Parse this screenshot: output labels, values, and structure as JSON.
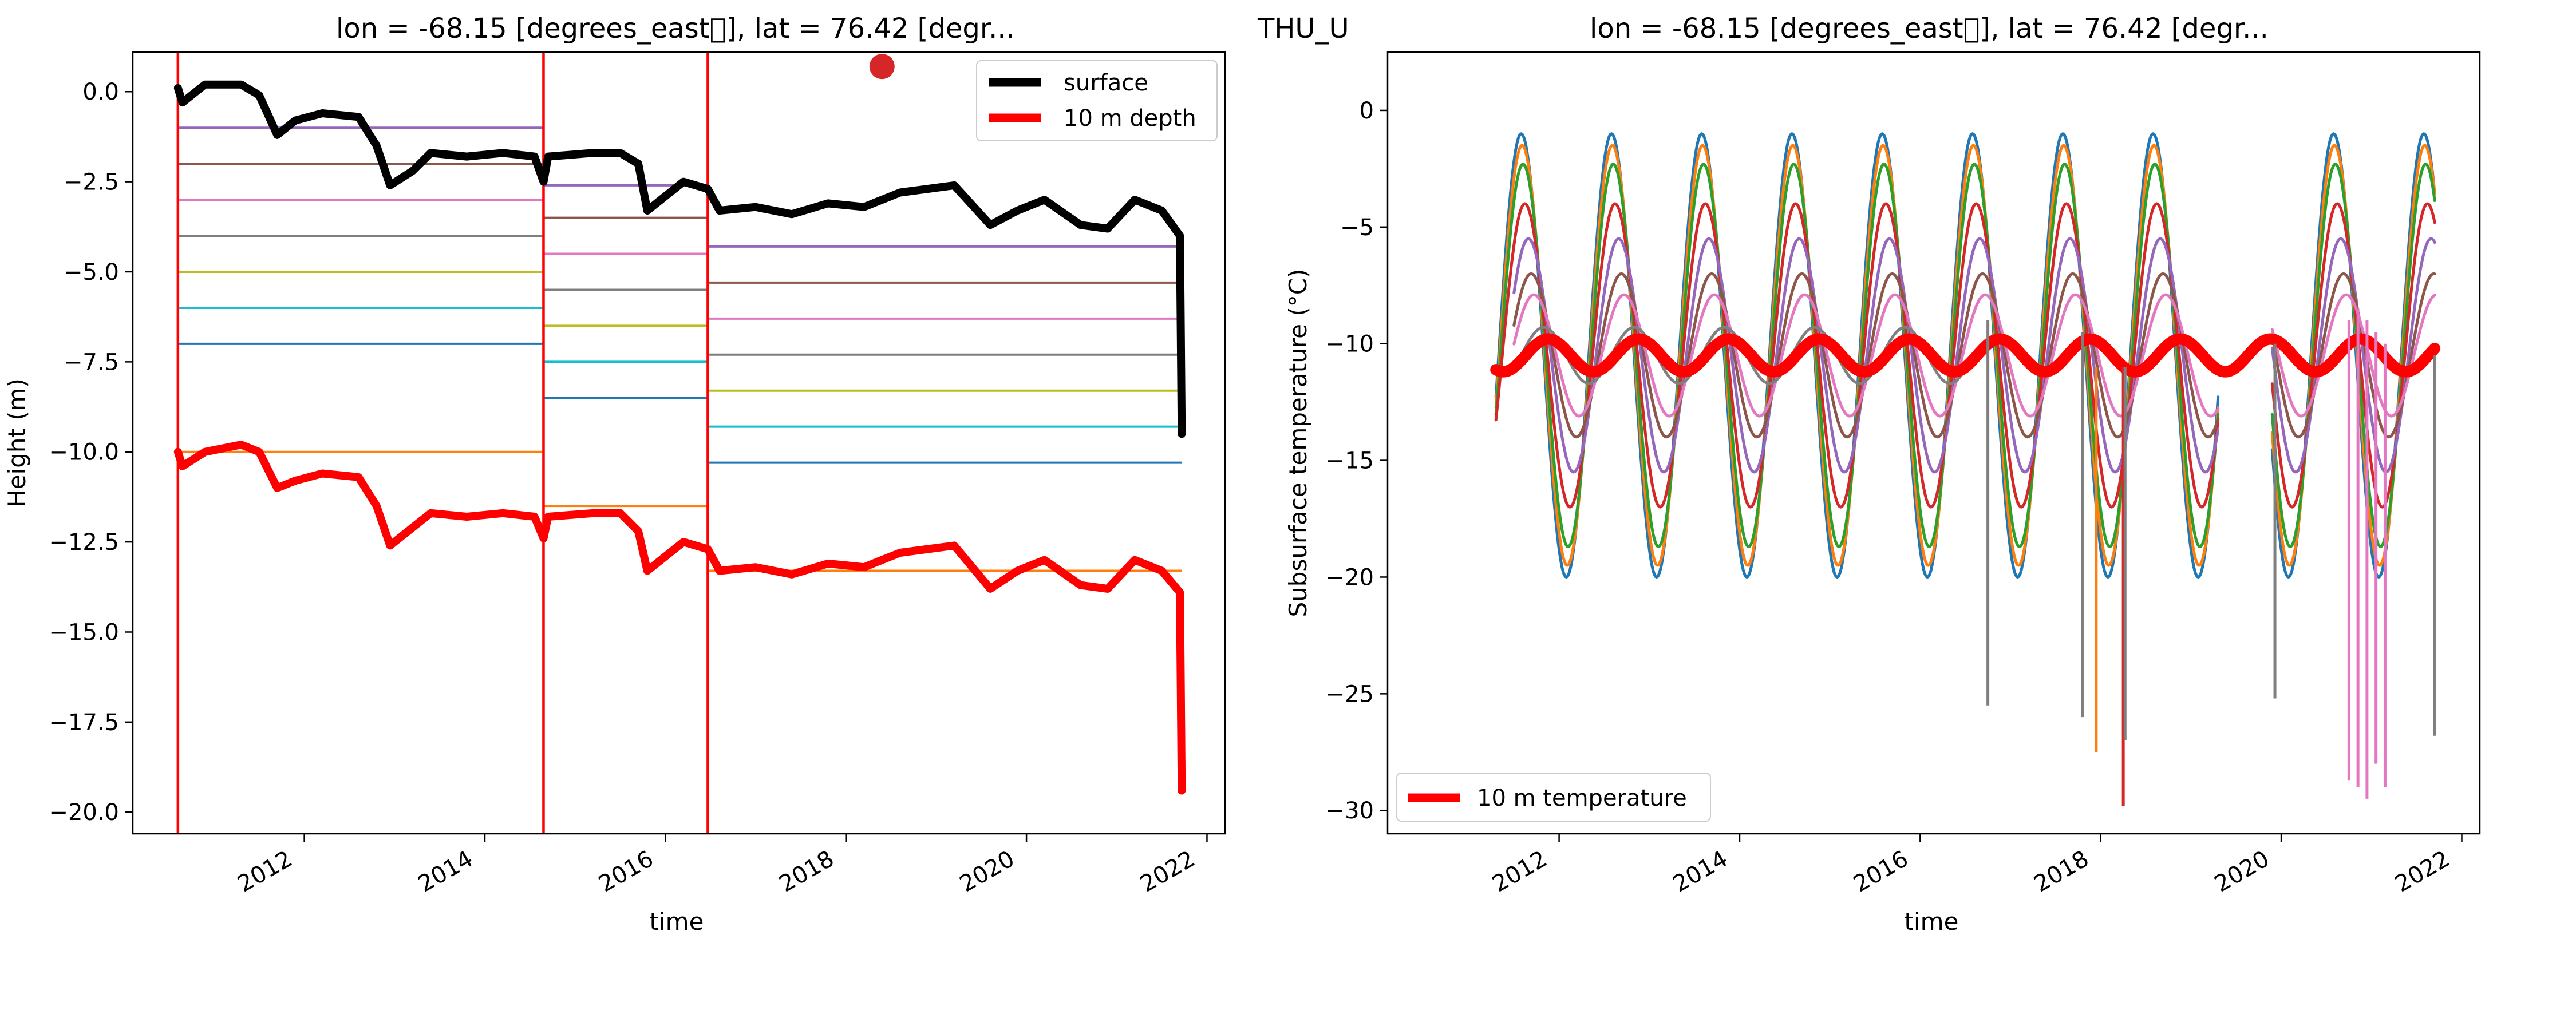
{
  "figure": {
    "station_label": "THU_U"
  },
  "chart_data": [
    {
      "type": "line",
      "title": "lon = -68.15 [degrees_east\u0000], lat = 76.42 [degr...",
      "xlabel": "time",
      "ylabel": "Height (m)",
      "xlim": [
        2010.1,
        2022.2
      ],
      "ylim": [
        -20.6,
        1.1
      ],
      "x_ticks": [
        2012,
        2014,
        2016,
        2018,
        2020,
        2022
      ],
      "x_tick_labels": [
        "2012",
        "2014",
        "2016",
        "2018",
        "2020",
        "2022"
      ],
      "y_ticks": [
        0.0,
        -2.5,
        -5.0,
        -7.5,
        -10.0,
        -12.5,
        -15.0,
        -17.5,
        -20.0
      ],
      "y_tick_labels": [
        "0.0",
        "−2.5",
        "−5.0",
        "−7.5",
        "−10.0",
        "−12.5",
        "−15.0",
        "−17.5",
        "−20.0"
      ],
      "grid": false,
      "legend_position": "upper right",
      "legend": [
        {
          "label": "surface",
          "color": "#000000"
        },
        {
          "label": "10 m depth",
          "color": "#ff0000"
        }
      ],
      "maintenance_dates": [
        2010.6,
        2014.65,
        2016.47
      ],
      "marker_point": {
        "x": 2018.4,
        "y": 0.7,
        "color": "#d62728"
      },
      "series": [
        {
          "name": "surface",
          "color": "#000000",
          "points": [
            [
              2010.6,
              0.1
            ],
            [
              2010.65,
              -0.3
            ],
            [
              2010.9,
              0.2
            ],
            [
              2011.3,
              0.2
            ],
            [
              2011.5,
              -0.1
            ],
            [
              2011.7,
              -1.2
            ],
            [
              2011.9,
              -0.8
            ],
            [
              2012.2,
              -0.6
            ],
            [
              2012.6,
              -0.7
            ],
            [
              2012.8,
              -1.5
            ],
            [
              2012.95,
              -2.6
            ],
            [
              2013.2,
              -2.2
            ],
            [
              2013.4,
              -1.7
            ],
            [
              2013.8,
              -1.8
            ],
            [
              2014.2,
              -1.7
            ],
            [
              2014.55,
              -1.8
            ],
            [
              2014.65,
              -2.5
            ],
            [
              2014.7,
              -1.8
            ],
            [
              2015.2,
              -1.7
            ],
            [
              2015.5,
              -1.7
            ],
            [
              2015.7,
              -2.0
            ],
            [
              2015.8,
              -3.3
            ],
            [
              2016.2,
              -2.5
            ],
            [
              2016.47,
              -2.7
            ],
            [
              2016.6,
              -3.3
            ],
            [
              2017.0,
              -3.2
            ],
            [
              2017.4,
              -3.4
            ],
            [
              2017.8,
              -3.1
            ],
            [
              2018.2,
              -3.2
            ],
            [
              2018.6,
              -2.8
            ],
            [
              2019.2,
              -2.6
            ],
            [
              2019.6,
              -3.7
            ],
            [
              2019.9,
              -3.3
            ],
            [
              2020.2,
              -3.0
            ],
            [
              2020.6,
              -3.7
            ],
            [
              2020.9,
              -3.8
            ],
            [
              2021.2,
              -3.0
            ],
            [
              2021.5,
              -3.3
            ],
            [
              2021.7,
              -4.0
            ],
            [
              2021.72,
              -9.5
            ]
          ]
        },
        {
          "name": "10 m depth",
          "color": "#ff0000",
          "points": [
            [
              2010.6,
              -10.0
            ],
            [
              2010.65,
              -10.4
            ],
            [
              2010.9,
              -10.0
            ],
            [
              2011.3,
              -9.8
            ],
            [
              2011.5,
              -10.0
            ],
            [
              2011.7,
              -11.0
            ],
            [
              2011.9,
              -10.8
            ],
            [
              2012.2,
              -10.6
            ],
            [
              2012.6,
              -10.7
            ],
            [
              2012.8,
              -11.5
            ],
            [
              2012.95,
              -12.6
            ],
            [
              2013.2,
              -12.1
            ],
            [
              2013.4,
              -11.7
            ],
            [
              2013.8,
              -11.8
            ],
            [
              2014.2,
              -11.7
            ],
            [
              2014.55,
              -11.8
            ],
            [
              2014.65,
              -12.4
            ],
            [
              2014.7,
              -11.8
            ],
            [
              2015.2,
              -11.7
            ],
            [
              2015.5,
              -11.7
            ],
            [
              2015.7,
              -12.2
            ],
            [
              2015.8,
              -13.3
            ],
            [
              2016.2,
              -12.5
            ],
            [
              2016.47,
              -12.7
            ],
            [
              2016.6,
              -13.3
            ],
            [
              2017.0,
              -13.2
            ],
            [
              2017.4,
              -13.4
            ],
            [
              2017.8,
              -13.1
            ],
            [
              2018.2,
              -13.2
            ],
            [
              2018.6,
              -12.8
            ],
            [
              2019.2,
              -12.6
            ],
            [
              2019.6,
              -13.8
            ],
            [
              2019.9,
              -13.3
            ],
            [
              2020.2,
              -13.0
            ],
            [
              2020.6,
              -13.7
            ],
            [
              2020.9,
              -13.8
            ],
            [
              2021.2,
              -13.0
            ],
            [
              2021.5,
              -13.3
            ],
            [
              2021.7,
              -13.9
            ],
            [
              2021.72,
              -19.4
            ]
          ]
        }
      ],
      "sensor_depth_segments": [
        {
          "color": "#9467bd",
          "segments": [
            [
              2010.6,
              2014.65,
              -1.0
            ],
            [
              2014.65,
              2016.47,
              -2.6
            ],
            [
              2016.47,
              2021.72,
              -4.3
            ]
          ]
        },
        {
          "color": "#8c564b",
          "segments": [
            [
              2010.6,
              2014.65,
              -2.0
            ],
            [
              2014.65,
              2016.47,
              -3.5
            ],
            [
              2016.47,
              2021.72,
              -5.3
            ]
          ]
        },
        {
          "color": "#e377c2",
          "segments": [
            [
              2010.6,
              2014.65,
              -3.0
            ],
            [
              2014.65,
              2016.47,
              -4.5
            ],
            [
              2016.47,
              2021.72,
              -6.3
            ]
          ]
        },
        {
          "color": "#7f7f7f",
          "segments": [
            [
              2010.6,
              2014.65,
              -4.0
            ],
            [
              2014.65,
              2016.47,
              -5.5
            ],
            [
              2016.47,
              2021.72,
              -7.3
            ]
          ]
        },
        {
          "color": "#bcbd22",
          "segments": [
            [
              2010.6,
              2014.65,
              -5.0
            ],
            [
              2014.65,
              2016.47,
              -6.5
            ],
            [
              2016.47,
              2021.72,
              -8.3
            ]
          ]
        },
        {
          "color": "#17becf",
          "segments": [
            [
              2010.6,
              2014.65,
              -6.0
            ],
            [
              2014.65,
              2016.47,
              -7.5
            ],
            [
              2016.47,
              2021.72,
              -9.3
            ]
          ]
        },
        {
          "color": "#1f77b4",
          "segments": [
            [
              2010.6,
              2014.65,
              -7.0
            ],
            [
              2014.65,
              2016.47,
              -8.5
            ],
            [
              2016.47,
              2021.72,
              -10.3
            ]
          ]
        },
        {
          "color": "#ff7f0e",
          "segments": [
            [
              2010.6,
              2014.65,
              -10.0
            ],
            [
              2014.65,
              2016.47,
              -11.5
            ],
            [
              2016.47,
              2021.72,
              -13.3
            ]
          ]
        }
      ]
    },
    {
      "type": "line",
      "title": "lon = -68.15 [degrees_east\u0000], lat = 76.42 [degr...",
      "xlabel": "time",
      "ylabel": "Subsurface temperature (°C)",
      "xlim": [
        2010.1,
        2022.2
      ],
      "ylim": [
        -31.0,
        2.5
      ],
      "x_ticks": [
        2012,
        2014,
        2016,
        2018,
        2020,
        2022
      ],
      "x_tick_labels": [
        "2012",
        "2014",
        "2016",
        "2018",
        "2020",
        "2022"
      ],
      "y_ticks": [
        0,
        -5,
        -10,
        -15,
        -20,
        -25,
        -30
      ],
      "y_tick_labels": [
        "0",
        "−5",
        "−10",
        "−15",
        "−20",
        "−25",
        "−30"
      ],
      "grid": false,
      "legend_position": "lower left",
      "legend": [
        {
          "label": "10 m temperature",
          "color": "#ff0000"
        }
      ],
      "annual_mean": -10.5,
      "series": [
        {
          "color": "#1f77b4",
          "amplitude": 9.5,
          "phase": 0.0,
          "segments": [
            [
              2011.3,
              2019.3
            ],
            [
              2019.9,
              2021.7
            ]
          ]
        },
        {
          "color": "#ff7f0e",
          "amplitude": 9.0,
          "phase": 0.01,
          "segments": [
            [
              2011.3,
              2019.3
            ],
            [
              2019.9,
              2021.7
            ]
          ]
        },
        {
          "color": "#2ca02c",
          "amplitude": 8.2,
          "phase": 0.02,
          "segments": [
            [
              2011.3,
              2019.3
            ],
            [
              2019.9,
              2021.7
            ]
          ]
        },
        {
          "color": "#d62728",
          "amplitude": 6.5,
          "phase": 0.04,
          "segments": [
            [
              2011.3,
              2019.3
            ],
            [
              2019.9,
              2021.7
            ]
          ]
        },
        {
          "color": "#9467bd",
          "amplitude": 5.0,
          "phase": 0.08,
          "segments": [
            [
              2011.5,
              2019.3
            ],
            [
              2019.9,
              2021.7
            ]
          ]
        },
        {
          "color": "#8c564b",
          "amplitude": 3.5,
          "phase": 0.11,
          "segments": [
            [
              2011.5,
              2019.3
            ],
            [
              2019.9,
              2021.7
            ]
          ]
        },
        {
          "color": "#e377c2",
          "amplitude": 2.6,
          "phase": 0.14,
          "segments": [
            [
              2011.5,
              2019.3
            ],
            [
              2019.9,
              2021.7
            ]
          ]
        },
        {
          "color": "#7f7f7f",
          "amplitude": 1.2,
          "phase": 0.25,
          "segments": [
            [
              2011.5,
              2016.5
            ]
          ]
        },
        {
          "name": "10 m temperature",
          "color": "#ff0000",
          "amplitude": 0.7,
          "phase": 0.3,
          "segments": [
            [
              2011.3,
              2021.7
            ]
          ]
        }
      ],
      "spikes": [
        {
          "x": 2016.75,
          "y0": -9.0,
          "y1": -25.5,
          "color": "#7f7f7f"
        },
        {
          "x": 2017.8,
          "y0": -9.5,
          "y1": -26.0,
          "color": "#7f7f7f"
        },
        {
          "x": 2017.95,
          "y0": -11.0,
          "y1": -27.5,
          "color": "#ff7f0e"
        },
        {
          "x": 2018.25,
          "y0": -11.0,
          "y1": -29.8,
          "color": "#d62728"
        },
        {
          "x": 2018.27,
          "y0": -11.0,
          "y1": -27.0,
          "color": "#7f7f7f"
        },
        {
          "x": 2019.93,
          "y0": -10.0,
          "y1": -25.2,
          "color": "#7f7f7f"
        },
        {
          "x": 2020.75,
          "y0": -9.0,
          "y1": -28.7,
          "color": "#e377c2"
        },
        {
          "x": 2020.85,
          "y0": -8.5,
          "y1": -29.0,
          "color": "#e377c2"
        },
        {
          "x": 2020.95,
          "y0": -9.0,
          "y1": -29.5,
          "color": "#e377c2"
        },
        {
          "x": 2021.05,
          "y0": -9.5,
          "y1": -28.0,
          "color": "#e377c2"
        },
        {
          "x": 2021.15,
          "y0": -10.0,
          "y1": -29.0,
          "color": "#e377c2"
        },
        {
          "x": 2021.7,
          "y0": -10.5,
          "y1": -26.8,
          "color": "#7f7f7f"
        }
      ]
    }
  ]
}
